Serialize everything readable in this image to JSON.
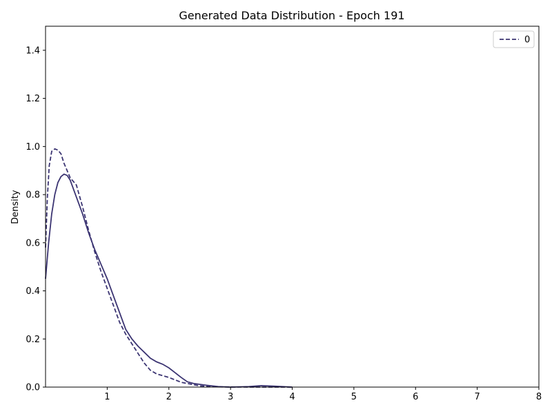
{
  "chart_data": {
    "type": "line",
    "title": "Generated Data Distribution - Epoch 191",
    "xlabel": "",
    "ylabel": "Density",
    "xlim": [
      0,
      8
    ],
    "ylim": [
      0,
      1.5
    ],
    "x_ticks": [
      1,
      2,
      3,
      4,
      5,
      6,
      7,
      8
    ],
    "x_tick_labels": [
      "1",
      "2",
      "3",
      "4",
      "5",
      "6",
      "7",
      "8"
    ],
    "y_ticks": [
      0,
      0.2,
      0.4,
      0.6,
      0.8,
      1.0,
      1.2,
      1.4
    ],
    "y_tick_labels": [
      "0.0",
      "0.2",
      "0.4",
      "0.6",
      "0.8",
      "1.0",
      "1.2",
      "1.4"
    ],
    "grid": false,
    "legend": {
      "placement": "top-right",
      "entries": [
        "0"
      ]
    },
    "series": [
      {
        "name": "0",
        "style": "dashed",
        "color": "#3b3472",
        "in_legend": true,
        "x": [
          0,
          0.03,
          0.06,
          0.1,
          0.15,
          0.2,
          0.25,
          0.3,
          0.4,
          0.5,
          0.6,
          0.7,
          0.8,
          0.9,
          1.0,
          1.1,
          1.2,
          1.3,
          1.4,
          1.5,
          1.6,
          1.7,
          1.8,
          2.0,
          2.2,
          2.5,
          2.8,
          3.0,
          3.5,
          4.0
        ],
        "y": [
          0.58,
          0.79,
          0.92,
          0.98,
          0.99,
          0.985,
          0.97,
          0.93,
          0.87,
          0.84,
          0.75,
          0.65,
          0.56,
          0.48,
          0.41,
          0.34,
          0.27,
          0.22,
          0.18,
          0.14,
          0.1,
          0.07,
          0.055,
          0.04,
          0.02,
          0.005,
          0.001,
          0.0005,
          0.0,
          0.0
        ]
      },
      {
        "name": "",
        "style": "solid",
        "color": "#3b3472",
        "in_legend": false,
        "x": [
          0,
          0.05,
          0.1,
          0.15,
          0.2,
          0.25,
          0.3,
          0.35,
          0.4,
          0.5,
          0.6,
          0.7,
          0.8,
          0.9,
          1.0,
          1.1,
          1.2,
          1.3,
          1.4,
          1.5,
          1.6,
          1.7,
          1.8,
          1.9,
          2.0,
          2.1,
          2.2,
          2.3,
          2.4,
          2.6,
          2.8,
          3.0,
          3.3,
          3.5,
          3.7,
          4.0
        ],
        "y": [
          0.45,
          0.6,
          0.72,
          0.8,
          0.85,
          0.875,
          0.885,
          0.88,
          0.86,
          0.79,
          0.72,
          0.64,
          0.57,
          0.51,
          0.45,
          0.38,
          0.31,
          0.24,
          0.2,
          0.17,
          0.145,
          0.12,
          0.105,
          0.095,
          0.08,
          0.06,
          0.04,
          0.022,
          0.015,
          0.008,
          0.002,
          0.0,
          0.002,
          0.006,
          0.004,
          0.0
        ]
      }
    ]
  }
}
